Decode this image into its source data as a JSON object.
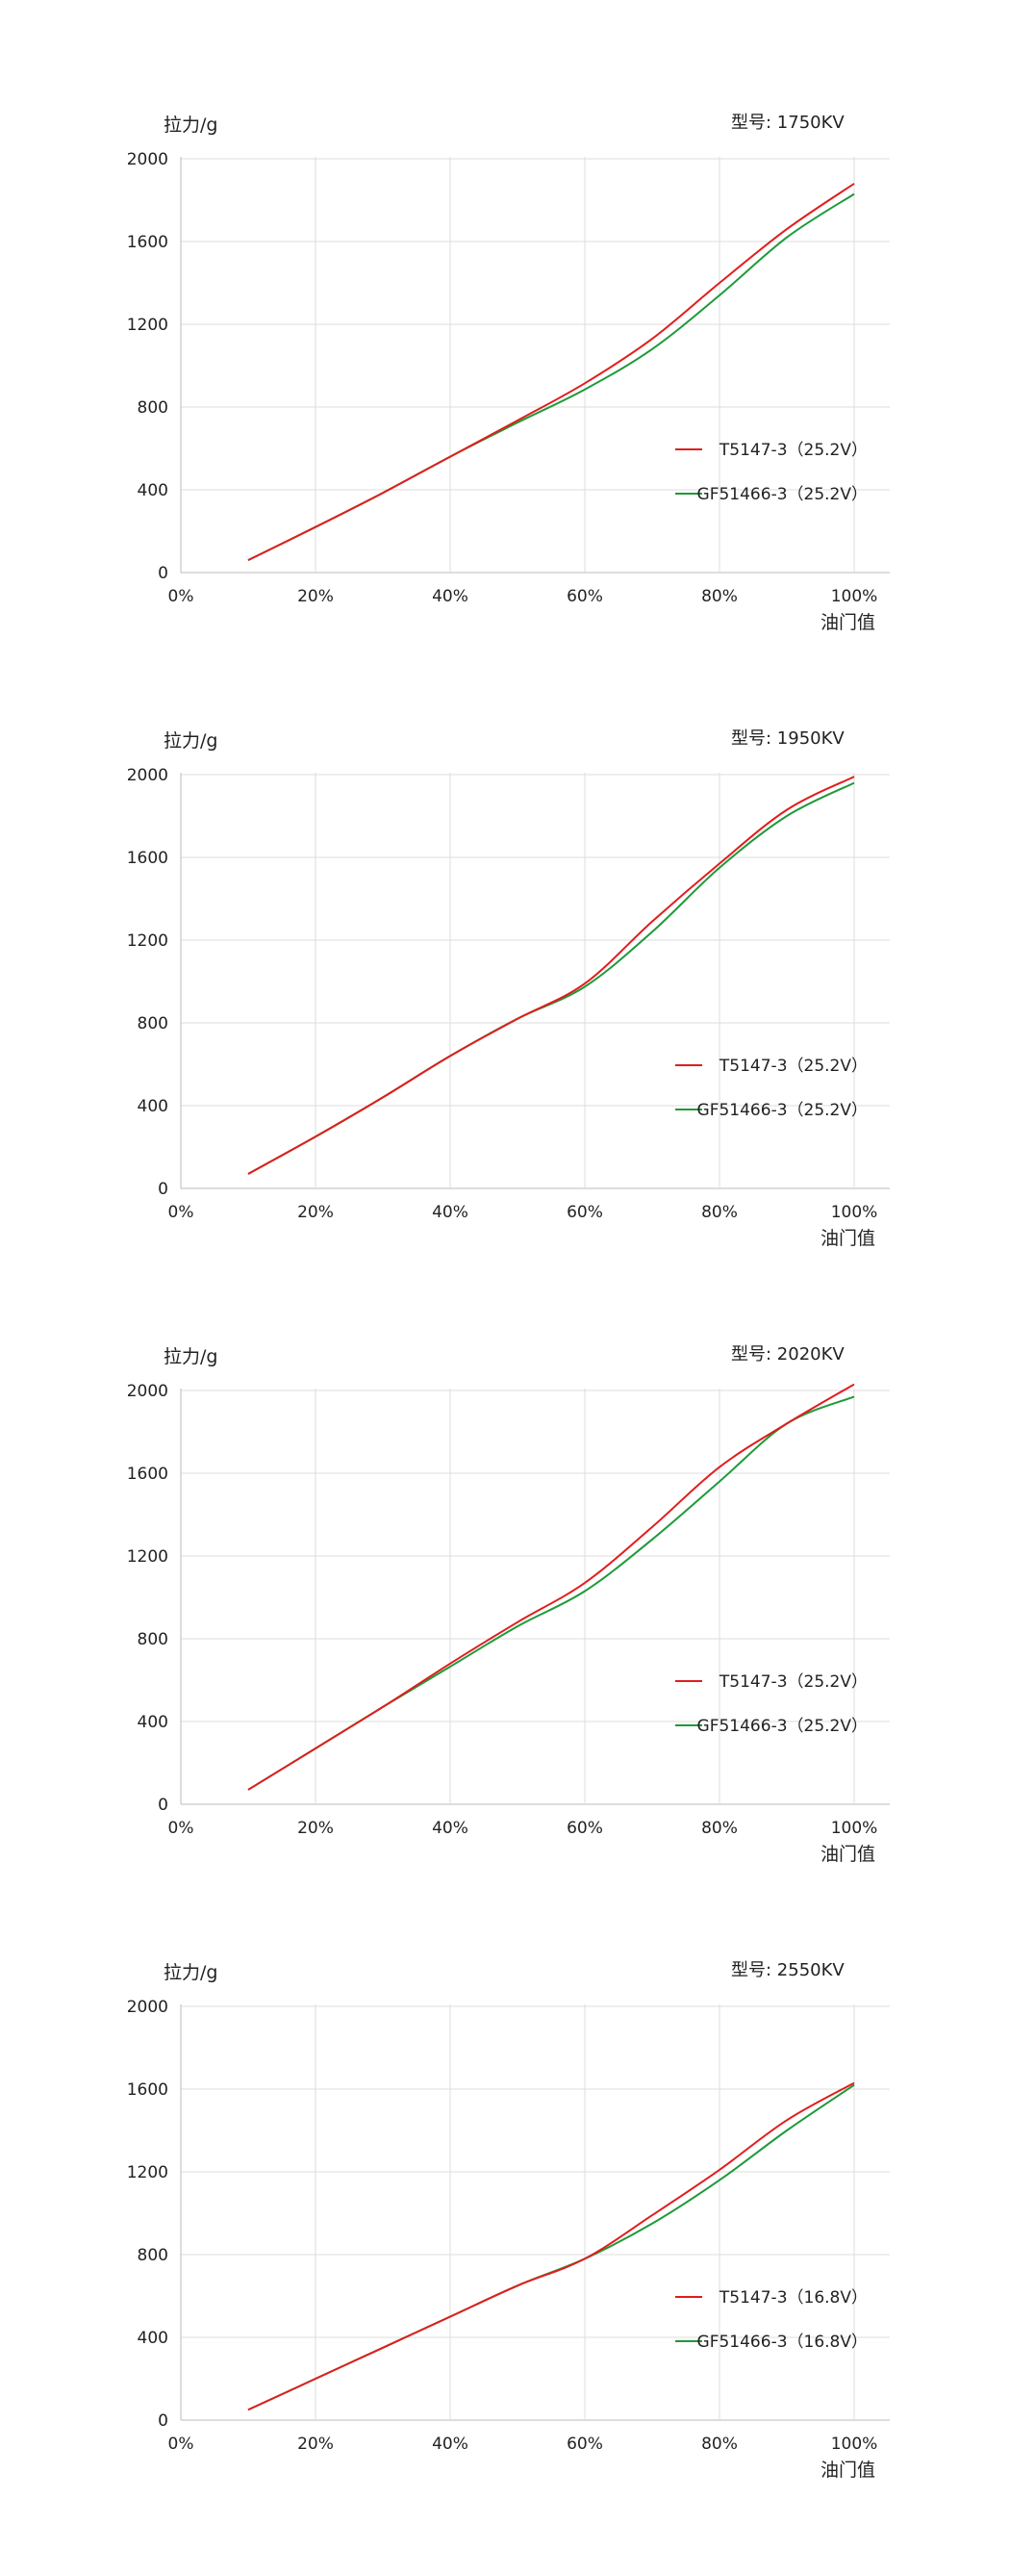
{
  "colors": {
    "red": "#e11d1d",
    "green": "#1e9a3a",
    "grid": "#dcdcdc",
    "axis": "#bbbbbb"
  },
  "charts": [
    {
      "ylabel": "拉力/g",
      "model": "型号:  1750KV",
      "xname": "油门值"
    },
    {
      "ylabel": "拉力/g",
      "model": "型号:  1950KV",
      "xname": "油门值"
    },
    {
      "ylabel": "拉力/g",
      "model": "型号:  2020KV",
      "xname": "油门值"
    },
    {
      "ylabel": "拉力/g",
      "model": "型号:  2550KV",
      "xname": "油门值"
    }
  ],
  "chart_data": [
    {
      "type": "line",
      "xlabel": "油门值",
      "ylabel": "拉力/g",
      "categories": [
        "0%",
        "20%",
        "40%",
        "60%",
        "80%",
        "100%"
      ],
      "yticks": [
        "0",
        "400",
        "800",
        "1200",
        "1600",
        "2000"
      ],
      "xlim": [
        0,
        100
      ],
      "ylim": [
        0,
        2000
      ],
      "x": [
        10,
        20,
        30,
        40,
        50,
        60,
        70,
        80,
        90,
        100
      ],
      "series": [
        {
          "name": "T5147-3（25.2V）",
          "color": "#e11d1d",
          "values": [
            60,
            220,
            385,
            560,
            735,
            915,
            1130,
            1400,
            1660,
            1880
          ]
        },
        {
          "name": "GF51466-3（25.2V）",
          "color": "#1e9a3a",
          "values": [
            60,
            220,
            385,
            560,
            725,
            885,
            1080,
            1340,
            1620,
            1830
          ]
        }
      ],
      "legend": "right"
    },
    {
      "type": "line",
      "xlabel": "油门值",
      "ylabel": "拉力/g",
      "categories": [
        "0%",
        "20%",
        "40%",
        "60%",
        "80%",
        "100%"
      ],
      "yticks": [
        "0",
        "400",
        "800",
        "1200",
        "1600",
        "2000"
      ],
      "xlim": [
        0,
        100
      ],
      "ylim": [
        0,
        2000
      ],
      "x": [
        10,
        20,
        30,
        40,
        50,
        60,
        70,
        80,
        90,
        100
      ],
      "series": [
        {
          "name": "T5147-3（25.2V）",
          "color": "#e11d1d",
          "values": [
            70,
            250,
            440,
            640,
            820,
            990,
            1290,
            1570,
            1830,
            1990
          ]
        },
        {
          "name": "GF51466-3（25.2V）",
          "color": "#1e9a3a",
          "values": [
            70,
            250,
            440,
            640,
            820,
            975,
            1240,
            1550,
            1800,
            1960
          ]
        }
      ],
      "legend": "right"
    },
    {
      "type": "line",
      "xlabel": "油门值",
      "ylabel": "拉力/g",
      "categories": [
        "0%",
        "20%",
        "40%",
        "60%",
        "80%",
        "100%"
      ],
      "yticks": [
        "0",
        "400",
        "800",
        "1200",
        "1600",
        "2000"
      ],
      "xlim": [
        0,
        100
      ],
      "ylim": [
        0,
        2000
      ],
      "x": [
        10,
        20,
        30,
        40,
        50,
        60,
        70,
        80,
        90,
        100
      ],
      "series": [
        {
          "name": "T5147-3（25.2V）",
          "color": "#e11d1d",
          "values": [
            70,
            270,
            470,
            680,
            880,
            1070,
            1340,
            1630,
            1840,
            2030
          ]
        },
        {
          "name": "GF51466-3（25.2V）",
          "color": "#1e9a3a",
          "values": [
            70,
            270,
            470,
            665,
            860,
            1030,
            1280,
            1560,
            1840,
            1970
          ]
        }
      ],
      "legend": "right"
    },
    {
      "type": "line",
      "xlabel": "油门值",
      "ylabel": "拉力/g",
      "categories": [
        "0%",
        "20%",
        "40%",
        "60%",
        "80%",
        "100%"
      ],
      "yticks": [
        "0",
        "400",
        "800",
        "1200",
        "1600",
        "2000"
      ],
      "xlim": [
        0,
        100
      ],
      "ylim": [
        0,
        2000
      ],
      "x": [
        10,
        20,
        30,
        40,
        50,
        60,
        70,
        80,
        90,
        100
      ],
      "series": [
        {
          "name": "T5147-3（16.8V）",
          "color": "#e11d1d",
          "values": [
            50,
            200,
            350,
            500,
            650,
            780,
            990,
            1210,
            1450,
            1630
          ]
        },
        {
          "name": "GF51466-3（16.8V）",
          "color": "#1e9a3a",
          "values": [
            50,
            200,
            350,
            500,
            650,
            780,
            950,
            1160,
            1400,
            1620
          ]
        }
      ],
      "legend": "right"
    }
  ]
}
